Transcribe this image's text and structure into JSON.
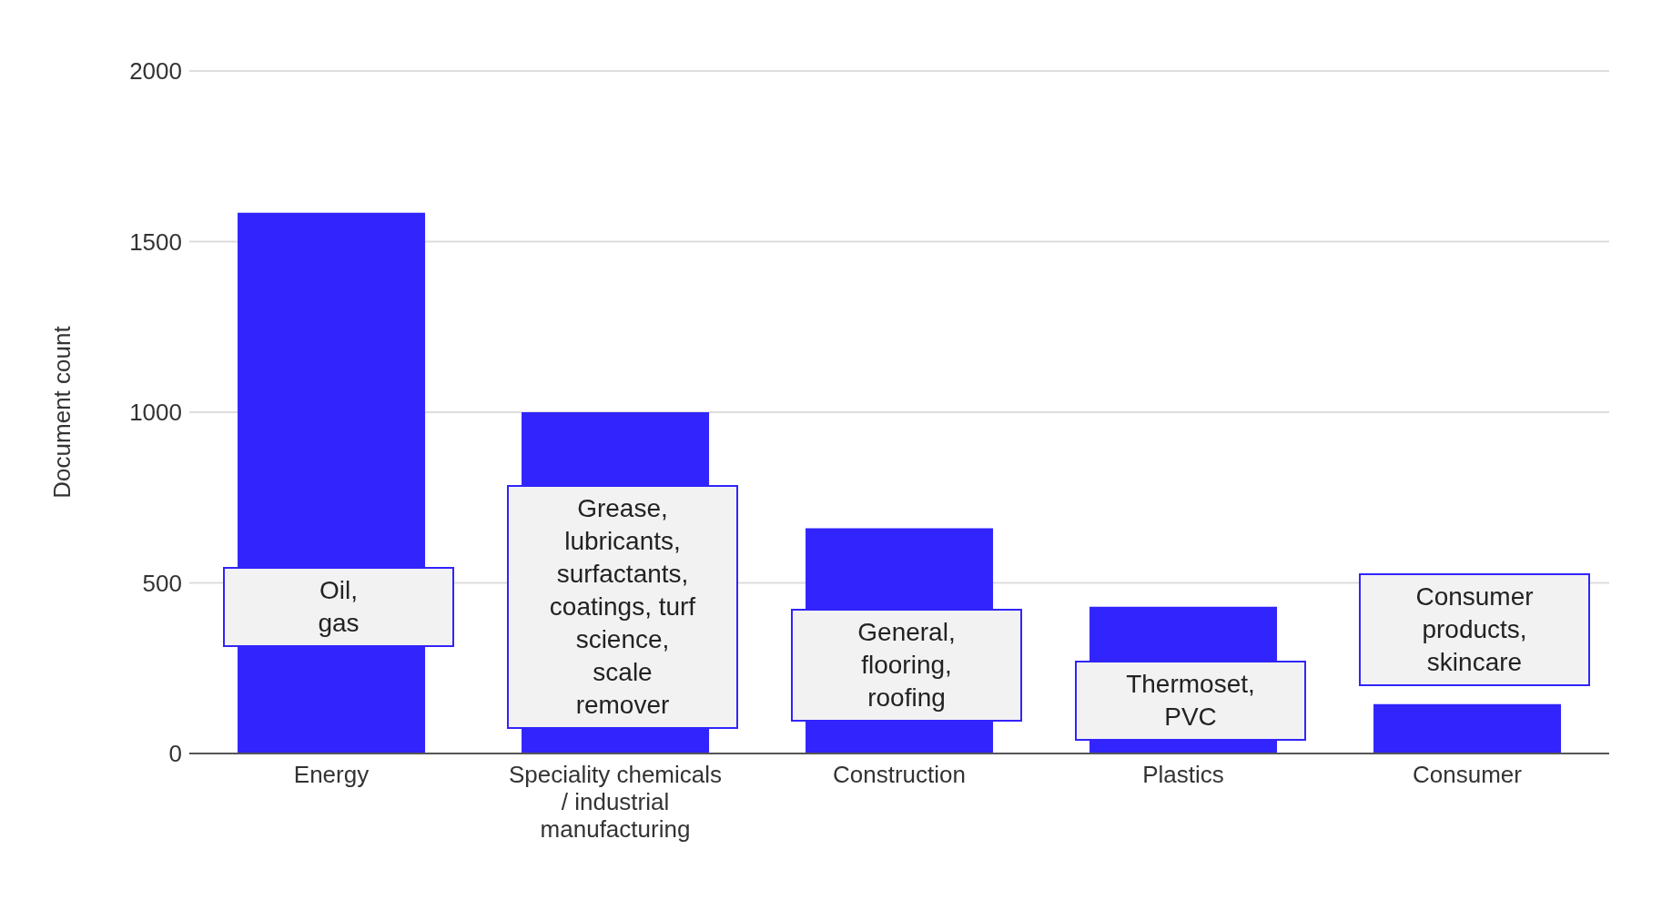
{
  "chart_data": {
    "type": "bar",
    "ylabel": "Document count",
    "categories": [
      "Energy",
      "Speciality chemicals / industrial manufacturing",
      "Construction",
      "Plastics",
      "Consumer"
    ],
    "values": [
      1585,
      1000,
      660,
      430,
      145
    ],
    "color": "#3124fc",
    "ylim": [
      0,
      2000
    ],
    "yticks": [
      0,
      500,
      1000,
      1500,
      2000
    ],
    "grid": "y",
    "annotations": [
      "Oil,\ngas",
      "Grease,\nlubricants,\nsurfactants,\ncoatings, turf\nscience,\nscale\nremover",
      "General,\nflooring,\nroofing",
      "Thermoset,\nPVC",
      "Consumer\nproducts,\nskincare"
    ]
  }
}
